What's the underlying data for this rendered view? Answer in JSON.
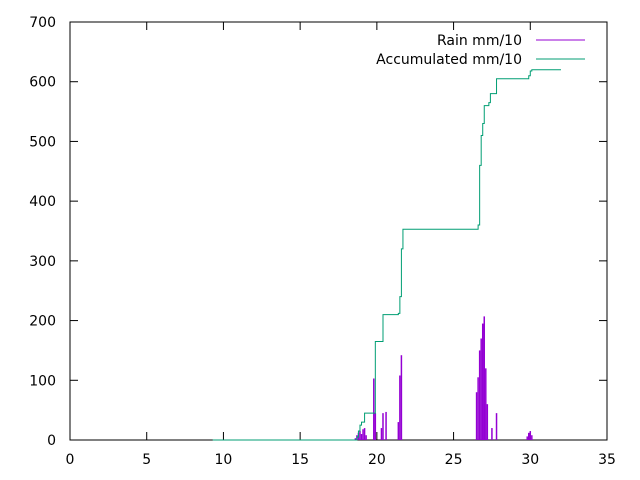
{
  "chart_data": {
    "type": "line",
    "title": "",
    "xlabel": "",
    "ylabel": "",
    "xlim": [
      0,
      35
    ],
    "ylim": [
      0,
      700
    ],
    "x_ticks": [
      0,
      5,
      10,
      15,
      20,
      25,
      30,
      35
    ],
    "y_ticks": [
      0,
      100,
      200,
      300,
      400,
      500,
      600,
      700
    ],
    "grid": false,
    "legend_position": "top-right",
    "series": [
      {
        "name": "Rain mm/10",
        "color": "#9400d3",
        "style": "impulses",
        "points": [
          [
            18.6,
            3
          ],
          [
            18.7,
            8
          ],
          [
            18.8,
            12
          ],
          [
            18.9,
            15
          ],
          [
            19.0,
            10
          ],
          [
            19.1,
            18
          ],
          [
            19.2,
            20
          ],
          [
            19.3,
            8
          ],
          [
            19.8,
            103
          ],
          [
            19.9,
            45
          ],
          [
            20.3,
            20
          ],
          [
            20.4,
            45
          ],
          [
            20.6,
            47
          ],
          [
            21.4,
            30
          ],
          [
            21.5,
            108
          ],
          [
            21.6,
            142
          ],
          [
            26.5,
            80
          ],
          [
            26.6,
            105
          ],
          [
            26.7,
            150
          ],
          [
            26.8,
            170
          ],
          [
            26.9,
            195
          ],
          [
            27.0,
            207
          ],
          [
            27.1,
            120
          ],
          [
            27.2,
            60
          ],
          [
            27.5,
            20
          ],
          [
            27.8,
            45
          ],
          [
            29.8,
            6
          ],
          [
            29.9,
            12
          ],
          [
            30.0,
            15
          ],
          [
            30.1,
            8
          ]
        ]
      },
      {
        "name": "Accumulated mm/10",
        "color": "#009e73",
        "style": "steps",
        "points": [
          [
            9.3,
            0
          ],
          [
            18.5,
            0
          ],
          [
            18.7,
            5
          ],
          [
            18.8,
            15
          ],
          [
            18.9,
            25
          ],
          [
            19.0,
            30
          ],
          [
            19.2,
            45
          ],
          [
            19.8,
            45
          ],
          [
            19.9,
            165
          ],
          [
            20.3,
            165
          ],
          [
            20.4,
            210
          ],
          [
            21.4,
            212
          ],
          [
            21.5,
            240
          ],
          [
            21.6,
            320
          ],
          [
            21.7,
            353
          ],
          [
            26.5,
            353
          ],
          [
            26.6,
            360
          ],
          [
            26.7,
            460
          ],
          [
            26.8,
            510
          ],
          [
            26.9,
            530
          ],
          [
            27.0,
            560
          ],
          [
            27.3,
            565
          ],
          [
            27.4,
            580
          ],
          [
            27.7,
            580
          ],
          [
            27.8,
            605
          ],
          [
            29.8,
            605
          ],
          [
            29.9,
            610
          ],
          [
            30.0,
            618
          ],
          [
            30.1,
            620
          ],
          [
            32.0,
            620
          ]
        ]
      }
    ]
  }
}
